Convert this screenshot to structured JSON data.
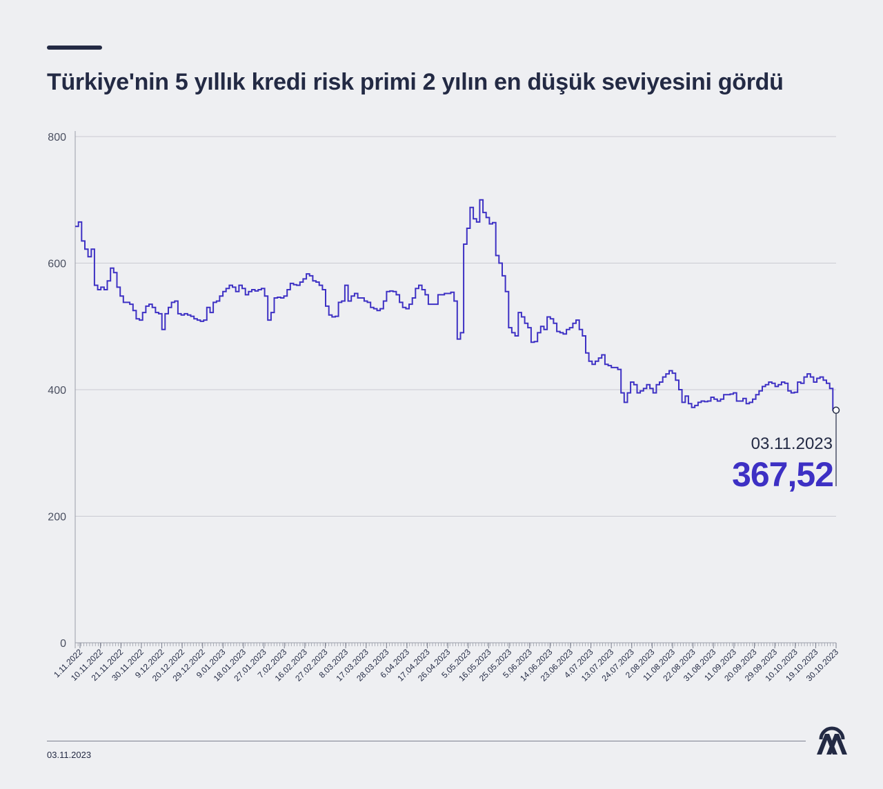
{
  "header": {
    "title": "Türkiye'nin 5 yıllık kredi risk primi 2 yılın en düşük seviyesini gördü"
  },
  "footer": {
    "date": "03.11.2023"
  },
  "logo": {
    "icon": "aa-logo-icon",
    "color": "#232a44"
  },
  "colors": {
    "line": "#3d30c4",
    "value": "#3d30c4",
    "text": "#232a44",
    "grid": "#c9cad1",
    "background": "#eeeff2"
  },
  "chart_data": {
    "type": "line",
    "series": [
      {
        "values": [
          658,
          665,
          635,
          622,
          610,
          622,
          565,
          558,
          562,
          558,
          572,
          592,
          585,
          562,
          548,
          538,
          538,
          535,
          525,
          512,
          510,
          522,
          532,
          535,
          530,
          522,
          520,
          495,
          520,
          530,
          538,
          540,
          520,
          518,
          520,
          518,
          516,
          512,
          510,
          508,
          510,
          530,
          522,
          538,
          540,
          548,
          555,
          560,
          565,
          562,
          555,
          565,
          560,
          550,
          555,
          558,
          556,
          558,
          560,
          548,
          510,
          522,
          545,
          546,
          545,
          548,
          558,
          568,
          566,
          565,
          570,
          575,
          583,
          580,
          572,
          570,
          565,
          558,
          532,
          518,
          515,
          516,
          538,
          540,
          565,
          540,
          548,
          552,
          545,
          545,
          540,
          538,
          530,
          528,
          525,
          528,
          540,
          555,
          556,
          555,
          550,
          538,
          530,
          528,
          535,
          545,
          560,
          565,
          558,
          550,
          535,
          535,
          535,
          550,
          550,
          552,
          552,
          554,
          540,
          480,
          490,
          630,
          655,
          688,
          670,
          665,
          700,
          680,
          672,
          662,
          664,
          612,
          600,
          580,
          555,
          498,
          490,
          485,
          522,
          515,
          505,
          498,
          475,
          476,
          490,
          500,
          495,
          515,
          512,
          505,
          492,
          490,
          488,
          495,
          498,
          505,
          510,
          495,
          485,
          458,
          445,
          440,
          445,
          450,
          455,
          440,
          438,
          435,
          435,
          432,
          395,
          380,
          395,
          412,
          408,
          395,
          398,
          402,
          408,
          402,
          395,
          408,
          412,
          420,
          425,
          430,
          426,
          415,
          400,
          380,
          390,
          378,
          372,
          375,
          380,
          382,
          381,
          382,
          388,
          385,
          382,
          385,
          392,
          392,
          393,
          395,
          382,
          382,
          386,
          378,
          380,
          385,
          392,
          398,
          405,
          408,
          412,
          410,
          405,
          408,
          412,
          410,
          398,
          395,
          396,
          412,
          410,
          420,
          425,
          420,
          412,
          418,
          420,
          415,
          410,
          402,
          367.52
        ],
        "last_value": 367.52,
        "last_value_label": "367,52",
        "last_date": "03.11.2023"
      }
    ],
    "x_tick_labels": [
      "1.11.2022",
      "10.11.2022",
      "21.11.2022",
      "30.11.2022",
      "9.12.2022",
      "20.12.2022",
      "29.12.2022",
      "9.01.2023",
      "18.01.2023",
      "27.01.2023",
      "7.02.2023",
      "16.02.2023",
      "27.02.2023",
      "8.03.2023",
      "17.03.2023",
      "28.03.2023",
      "6.04.2023",
      "17.04.2023",
      "26.04.2023",
      "5.05.2023",
      "16.05.2023",
      "25.05.2023",
      "5.06.2023",
      "14.06.2023",
      "23.06.2023",
      "4.07.2023",
      "13.07.2023",
      "24.07.2023",
      "2.08.2023",
      "11.08.2023",
      "22.08.2023",
      "31.08.2023",
      "11.09.2023",
      "20.09.2023",
      "29.09.2023",
      "10.10.2023",
      "19.10.2023",
      "30.10.2023"
    ],
    "y_ticks": [
      0,
      200,
      400,
      600,
      800
    ],
    "ylim": [
      0,
      800
    ],
    "grid": true,
    "minor_x_ticks": 264
  }
}
